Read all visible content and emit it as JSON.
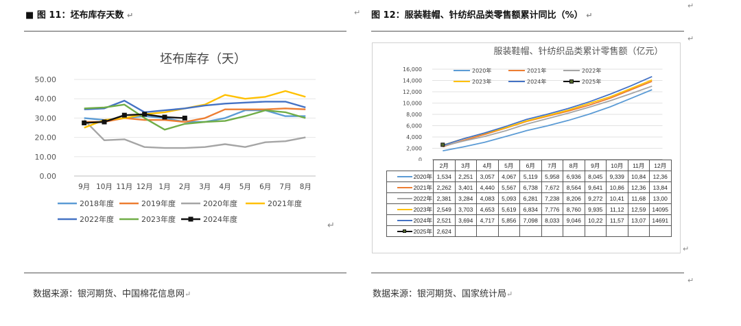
{
  "left": {
    "fig_title": "图 11：坯布库存天数",
    "chart_title": "坯布库存（天）",
    "source": "数据来源：银河期货、中国棉花信息网",
    "marks": [
      "■",
      "↵",
      "↵"
    ]
  },
  "right": {
    "fig_title": "图 12：服装鞋帽、针纺织品类零售额累计同比（%）",
    "chart_title": "服装鞋帽、针纺织品类累计零售额（亿元）",
    "source": "数据来源：银河期货、国家统计局",
    "marks": [
      "↵",
      "↵",
      "↵",
      "↵",
      "↵",
      "↵",
      "↵"
    ]
  },
  "chart_data": [
    {
      "type": "line",
      "title": "坯布库存（天）",
      "categories": [
        "9月",
        "10月",
        "11月",
        "12月",
        "1月",
        "2月",
        "3月",
        "4月",
        "5月",
        "6月",
        "7月",
        "8月"
      ],
      "y_ticks": [
        "50.00",
        "40.00",
        "30.00",
        "20.00",
        "10.00",
        "0.00"
      ],
      "ylim": [
        0,
        50
      ],
      "legend_position": "bottom",
      "series": [
        {
          "name": "2018年度",
          "color": "#5B9BD5",
          "values": [
            30,
            29,
            30,
            31,
            30,
            28,
            28,
            30,
            34,
            34,
            31,
            31
          ]
        },
        {
          "name": "2019年度",
          "color": "#ED7D31",
          "values": [
            28,
            28,
            30,
            29,
            29,
            28,
            30,
            34.5,
            34.5,
            34.5,
            35,
            34.5
          ]
        },
        {
          "name": "2020年度",
          "color": "#A5A5A5",
          "values": [
            29,
            18.5,
            19,
            15,
            14.5,
            14.5,
            15,
            16.5,
            15,
            17.5,
            18,
            20
          ]
        },
        {
          "name": "2021年度",
          "color": "#FFC000",
          "values": [
            25,
            29,
            30,
            32,
            33,
            35,
            37,
            42,
            40,
            41,
            44,
            41
          ]
        },
        {
          "name": "2022年度",
          "color": "#4472C4",
          "values": [
            34.5,
            35,
            39,
            33,
            34,
            35,
            36.5,
            37.5,
            38,
            38.5,
            38.5,
            35.5
          ]
        },
        {
          "name": "2023年度",
          "color": "#70AD47",
          "values": [
            35,
            35.5,
            37,
            30,
            24,
            27,
            28,
            28.5,
            31,
            34,
            33,
            30
          ]
        },
        {
          "name": "2024年度",
          "color": "#111111",
          "values": [
            27.5,
            28,
            31.5,
            32,
            30.5,
            30,
            null,
            null,
            null,
            null,
            null,
            null
          ]
        }
      ]
    },
    {
      "type": "line",
      "title": "服装鞋帽、针纺织品类累计零售额（亿元）",
      "categories": [
        "2月",
        "3月",
        "4月",
        "5月",
        "6月",
        "7月",
        "8月",
        "9月",
        "10月",
        "11月",
        "12月"
      ],
      "y_ticks": [
        "16,000",
        "14,000",
        "12,000",
        "10,000",
        "8,000",
        "6,000",
        "4,000",
        "2,000",
        "0"
      ],
      "ylim": [
        0,
        16000
      ],
      "legend_position": "top",
      "series": [
        {
          "name": "2020年",
          "color": "#5B9BD5",
          "values": [
            1534,
            2251,
            3057,
            4067,
            5119,
            5958,
            6936,
            8045,
            9339,
            10840,
            12360
          ]
        },
        {
          "name": "2021年",
          "color": "#ED7D31",
          "values": [
            2262,
            3401,
            4440,
            5567,
            6738,
            7672,
            8564,
            9641,
            10860,
            12360,
            13840
          ]
        },
        {
          "name": "2022年",
          "color": "#A5A5A5",
          "values": [
            2381,
            3284,
            4083,
            5093,
            6281,
            7238,
            8206,
            9272,
            10410,
            11680,
            13000
          ]
        },
        {
          "name": "2023年",
          "color": "#FFC000",
          "values": [
            2549,
            3703,
            4653,
            5619,
            6834,
            7776,
            8760,
            9935,
            11120,
            12590,
            14095
          ]
        },
        {
          "name": "2024年",
          "color": "#4472C4",
          "values": [
            2521,
            3694,
            4717,
            5856,
            7098,
            8033,
            9046,
            10220,
            11570,
            13070,
            14691
          ]
        },
        {
          "name": "2025年",
          "color": "#111111",
          "values": [
            2624,
            null,
            null,
            null,
            null,
            null,
            null,
            null,
            null,
            null,
            null
          ]
        }
      ],
      "table_rows": [
        {
          "name": "2020年",
          "cells": [
            "1,534",
            "2,251",
            "3,057",
            "4,067",
            "5,119",
            "5,958",
            "6,936",
            "8,045",
            "9,339",
            "10,84",
            "12,36"
          ]
        },
        {
          "name": "2021年",
          "cells": [
            "2,262",
            "3,401",
            "4,440",
            "5,567",
            "6,738",
            "7,672",
            "8,564",
            "9,641",
            "10,86",
            "12,36",
            "13,84"
          ]
        },
        {
          "name": "2022年",
          "cells": [
            "2,381",
            "3,284",
            "4,083",
            "5,093",
            "6,281",
            "7,238",
            "8,206",
            "9,272",
            "10,41",
            "11,68",
            "13,00"
          ]
        },
        {
          "name": "2023年",
          "cells": [
            "2,549",
            "3,703",
            "4,653",
            "5,619",
            "6,834",
            "7,776",
            "8,760",
            "9,935",
            "11,12",
            "12,59",
            "14095"
          ]
        },
        {
          "name": "2024年",
          "cells": [
            "2,521",
            "3,694",
            "4,717",
            "5,856",
            "7,098",
            "8,033",
            "9,046",
            "10,22",
            "11,57",
            "13,07",
            "14691"
          ]
        },
        {
          "name": "2025年",
          "cells": [
            "2,624",
            "",
            "",
            "",
            "",
            "",
            "",
            "",
            "",
            "",
            ""
          ]
        }
      ]
    }
  ]
}
